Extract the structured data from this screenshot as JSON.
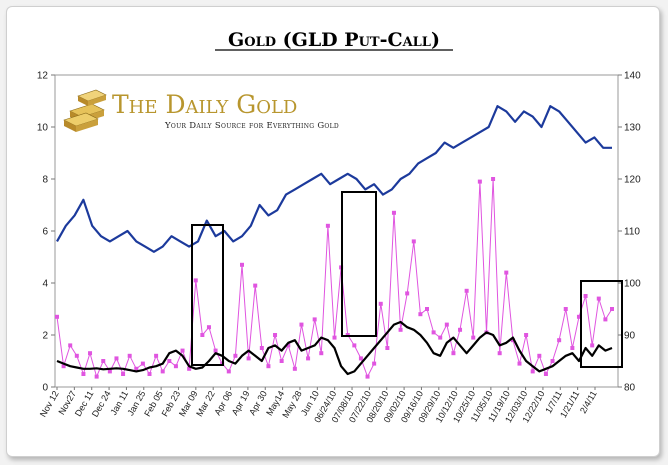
{
  "title": "Gold (GLD Put-Call)",
  "logo": {
    "name": "The Daily Gold",
    "tagline": "Your Daily Source for Everything Gold"
  },
  "colors": {
    "gold_price": "#1c3a9c",
    "put_call": "#e055e0",
    "moving_average": "#000000",
    "logo_gold": "#b8962e"
  },
  "chart_data": {
    "type": "line",
    "title": "Gold (GLD Put-Call)",
    "grid": false,
    "legend": "none",
    "left_axis": {
      "ylim": [
        0,
        12
      ],
      "ticks": [
        "0",
        "2",
        "4",
        "6",
        "8",
        "10",
        "12"
      ]
    },
    "right_axis": {
      "ylim": [
        80,
        140
      ],
      "ticks": [
        "80",
        "90",
        "100",
        "110",
        "120",
        "130",
        "140"
      ]
    },
    "x_tick_labels": [
      "Nov 12",
      "Nov27",
      "Dec 11",
      "Dec 24",
      "Jan 11",
      "Jan 25",
      "Feb 05",
      "Feb 23",
      "Mar 09",
      "Mar 22",
      "Apr 06",
      "Apr 19",
      "Apr 30",
      "May14",
      "May 28",
      "Jun 10",
      "06/24/10",
      "07/08/10",
      "07/22/10",
      "08/20/10",
      "09/02/10",
      "09/16/10",
      "09/29/10",
      "10/12/10",
      "10/25/10",
      "11/05/10",
      "11/19/10",
      "12/03/10",
      "12/22/10",
      "1/7/11",
      "1/21/11",
      "2/4/11"
    ],
    "series": [
      {
        "axis": "right",
        "values": [
          108,
          111,
          113,
          116,
          111,
          109,
          108,
          109,
          110,
          108,
          107,
          106,
          107,
          109,
          108,
          107,
          108,
          112,
          109,
          110,
          108,
          109,
          111,
          115,
          113,
          114,
          117,
          118,
          119,
          120,
          121,
          119,
          120,
          121,
          120,
          118,
          119,
          117,
          118,
          120,
          121,
          123,
          124,
          125,
          127,
          126,
          127,
          128,
          129,
          130,
          134,
          133,
          131,
          133,
          132,
          130,
          134,
          133,
          131,
          129,
          127,
          128,
          126,
          126
        ]
      },
      {
        "axis": "left",
        "values": [
          2.7,
          0.8,
          1.6,
          1.2,
          0.5,
          1.3,
          0.4,
          1.0,
          0.6,
          1.1,
          0.5,
          1.2,
          0.7,
          0.9,
          0.5,
          1.2,
          0.6,
          1.0,
          0.8,
          1.4,
          0.7,
          4.1,
          2.0,
          2.3,
          1.4,
          0.9,
          0.6,
          1.2,
          4.7,
          1.1,
          3.9,
          1.5,
          0.8,
          2.0,
          1.0,
          1.6,
          0.7,
          2.4,
          1.1,
          2.6,
          1.3,
          6.2,
          1.9,
          4.6,
          2.0,
          1.6,
          1.1,
          0.4,
          0.9,
          3.2,
          1.5,
          6.7,
          2.2,
          3.6,
          5.6,
          2.8,
          3.0,
          2.1,
          1.9,
          2.4,
          1.3,
          2.2,
          3.7,
          1.9,
          7.9,
          2.1,
          8.0,
          1.3,
          4.4,
          1.8,
          0.9,
          2.0,
          0.6,
          1.2,
          0.5,
          1.0,
          1.8,
          3.0,
          1.5,
          2.7,
          3.5,
          1.6,
          3.4,
          2.6,
          3.0
        ]
      },
      {
        "axis": "left",
        "values": [
          1.0,
          0.9,
          0.8,
          0.75,
          0.7,
          0.7,
          0.72,
          0.68,
          0.7,
          0.72,
          0.7,
          0.65,
          0.6,
          0.65,
          0.75,
          0.8,
          0.9,
          1.3,
          1.4,
          1.2,
          0.8,
          0.7,
          0.75,
          1.0,
          1.3,
          1.2,
          1.0,
          0.9,
          1.2,
          1.4,
          1.2,
          1.0,
          1.5,
          1.6,
          1.4,
          1.7,
          1.8,
          1.4,
          1.5,
          1.6,
          1.9,
          1.8,
          1.5,
          0.8,
          0.5,
          0.6,
          0.9,
          1.2,
          1.5,
          1.8,
          2.1,
          2.4,
          2.5,
          2.3,
          2.2,
          2.0,
          1.7,
          1.3,
          1.2,
          1.7,
          1.9,
          1.6,
          1.3,
          1.6,
          1.9,
          2.1,
          2.0,
          1.6,
          1.7,
          1.9,
          1.4,
          1.0,
          0.8,
          0.6,
          0.7,
          0.8,
          1.0,
          1.2,
          1.3,
          1.0,
          1.5,
          1.2,
          1.6,
          1.4,
          1.5
        ]
      }
    ]
  }
}
